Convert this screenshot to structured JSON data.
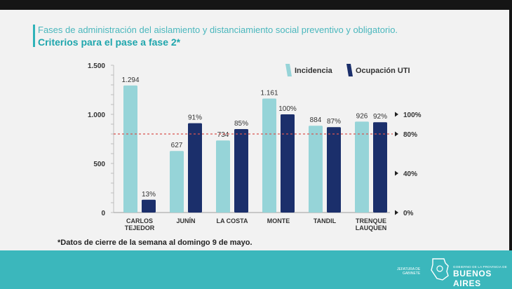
{
  "title": "Fases de administración del aislamiento y distanciamiento social preventivo y obligatorio.",
  "subtitle": "Criterios para el pase a fase 2*",
  "footnote": "*Datos de cierre de la semana al domingo 9 de mayo.",
  "logo": {
    "left_text": [
      "JEFATURA DE",
      "GABINETE"
    ],
    "right_sub": "GOBIERNO DE LA PROVINCIA DE",
    "right_main": "BUENOS AIRES"
  },
  "colors": {
    "incidencia": "#96d4d8",
    "ocupacion": "#1b2f6b",
    "accent": "#2fb3b9",
    "threshold": "#d9534f",
    "band": "#3bb7bc"
  },
  "chart_data": {
    "type": "bar",
    "categories": [
      "CARLOS\nTEJEDOR",
      "JUNÍN",
      "LA COSTA",
      "MONTE",
      "TANDIL",
      "TRENQUE\nLAUQUEN"
    ],
    "series": [
      {
        "name": "Incidencia",
        "axis": "left",
        "values": [
          1294,
          627,
          734,
          1161,
          884,
          926
        ],
        "labels": [
          "1.294",
          "627",
          "734",
          "1.161",
          "884",
          "926"
        ]
      },
      {
        "name": "Ocupación UTI",
        "axis": "right",
        "values": [
          13,
          91,
          85,
          100,
          87,
          92
        ],
        "labels": [
          "13%",
          "91%",
          "85%",
          "100%",
          "87%",
          "92%"
        ]
      }
    ],
    "left_axis": {
      "ylim": [
        0,
        1500
      ],
      "ticks": [
        0,
        500,
        1000,
        1500
      ],
      "tick_labels": [
        "0",
        "500",
        "1.000",
        "1.500"
      ]
    },
    "right_axis": {
      "ylim": [
        0,
        150
      ],
      "ticks": [
        0,
        40,
        80,
        100
      ],
      "tick_labels": [
        "0%",
        "40%",
        "80%",
        "100%"
      ]
    },
    "threshold": {
      "value_right": 80,
      "style": "dashed"
    },
    "legend_position": "top-right"
  }
}
